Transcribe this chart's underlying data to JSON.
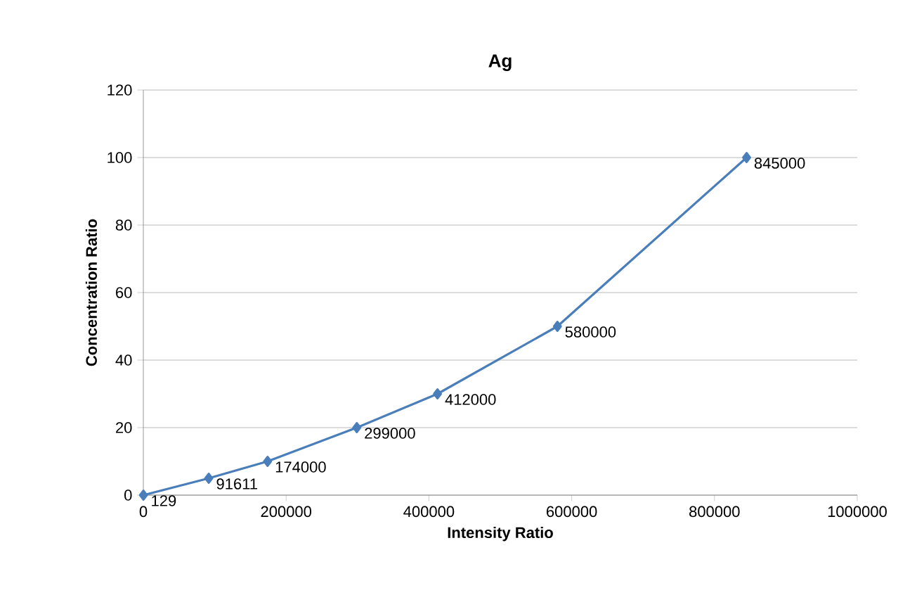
{
  "chart_data": {
    "type": "line",
    "title": "Ag",
    "xlabel": "Intensity Ratio",
    "ylabel": "Concentration Ratio",
    "x": [
      129,
      91611,
      174000,
      299000,
      412000,
      580000,
      845000
    ],
    "values": [
      0,
      5,
      10,
      20,
      30,
      50,
      100
    ],
    "annotations": [
      {
        "text": "129",
        "x": 129,
        "y": 0
      },
      {
        "text": "91611",
        "x": 91611,
        "y": 5
      },
      {
        "text": "174000",
        "x": 174000,
        "y": 10
      },
      {
        "text": "299000",
        "x": 299000,
        "y": 20
      },
      {
        "text": "412000",
        "x": 412000,
        "y": 30
      },
      {
        "text": "580000",
        "x": 580000,
        "y": 50
      },
      {
        "text": "845000",
        "x": 845000,
        "y": 100
      }
    ],
    "color": "#4a7ebb",
    "marker": "diamond",
    "line_style": "solid",
    "grid": "y",
    "xlim": [
      0,
      1000000
    ],
    "xticks": [
      0,
      200000,
      400000,
      600000,
      800000,
      1000000
    ],
    "ylim": [
      0,
      120
    ],
    "yticks": [
      0,
      20,
      40,
      60,
      80,
      100,
      120
    ]
  }
}
